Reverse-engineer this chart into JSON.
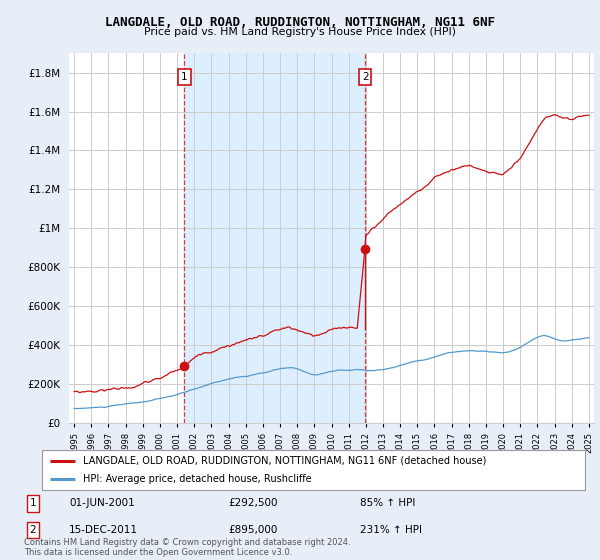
{
  "title": "LANGDALE, OLD ROAD, RUDDINGTON, NOTTINGHAM, NG11 6NF",
  "subtitle": "Price paid vs. HM Land Registry's House Price Index (HPI)",
  "ylabel_ticks": [
    "£0",
    "£200K",
    "£400K",
    "£600K",
    "£800K",
    "£1M",
    "£1.2M",
    "£1.4M",
    "£1.6M",
    "£1.8M"
  ],
  "ytick_vals": [
    0,
    200000,
    400000,
    600000,
    800000,
    1000000,
    1200000,
    1400000,
    1600000,
    1800000
  ],
  "ylim": [
    0,
    1900000
  ],
  "xlim_start": 1994.7,
  "xlim_end": 2025.3,
  "background_color": "#e8eef8",
  "plot_bg_color": "#ffffff",
  "shade_color": "#ddeeff",
  "grid_color": "#cccccc",
  "hpi_line_color": "#5599cc",
  "sale_line_color": "#cc1111",
  "marker_color": "#cc1111",
  "annotation_box_edge": "#cc1111",
  "sale1_x": 2001.42,
  "sale1_y": 292500,
  "sale1_label": "1",
  "sale1_date": "01-JUN-2001",
  "sale1_price": "£292,500",
  "sale1_hpi": "85% ↑ HPI",
  "sale2_x": 2011.96,
  "sale2_y": 895000,
  "sale2_label": "2",
  "sale2_date": "15-DEC-2011",
  "sale2_price": "£895,000",
  "sale2_hpi": "231% ↑ HPI",
  "legend_line1": "LANGDALE, OLD ROAD, RUDDINGTON, NOTTINGHAM, NG11 6NF (detached house)",
  "legend_line2": "HPI: Average price, detached house, Rushcliffe",
  "footer": "Contains HM Land Registry data © Crown copyright and database right 2024.\nThis data is licensed under the Open Government Licence v3.0."
}
